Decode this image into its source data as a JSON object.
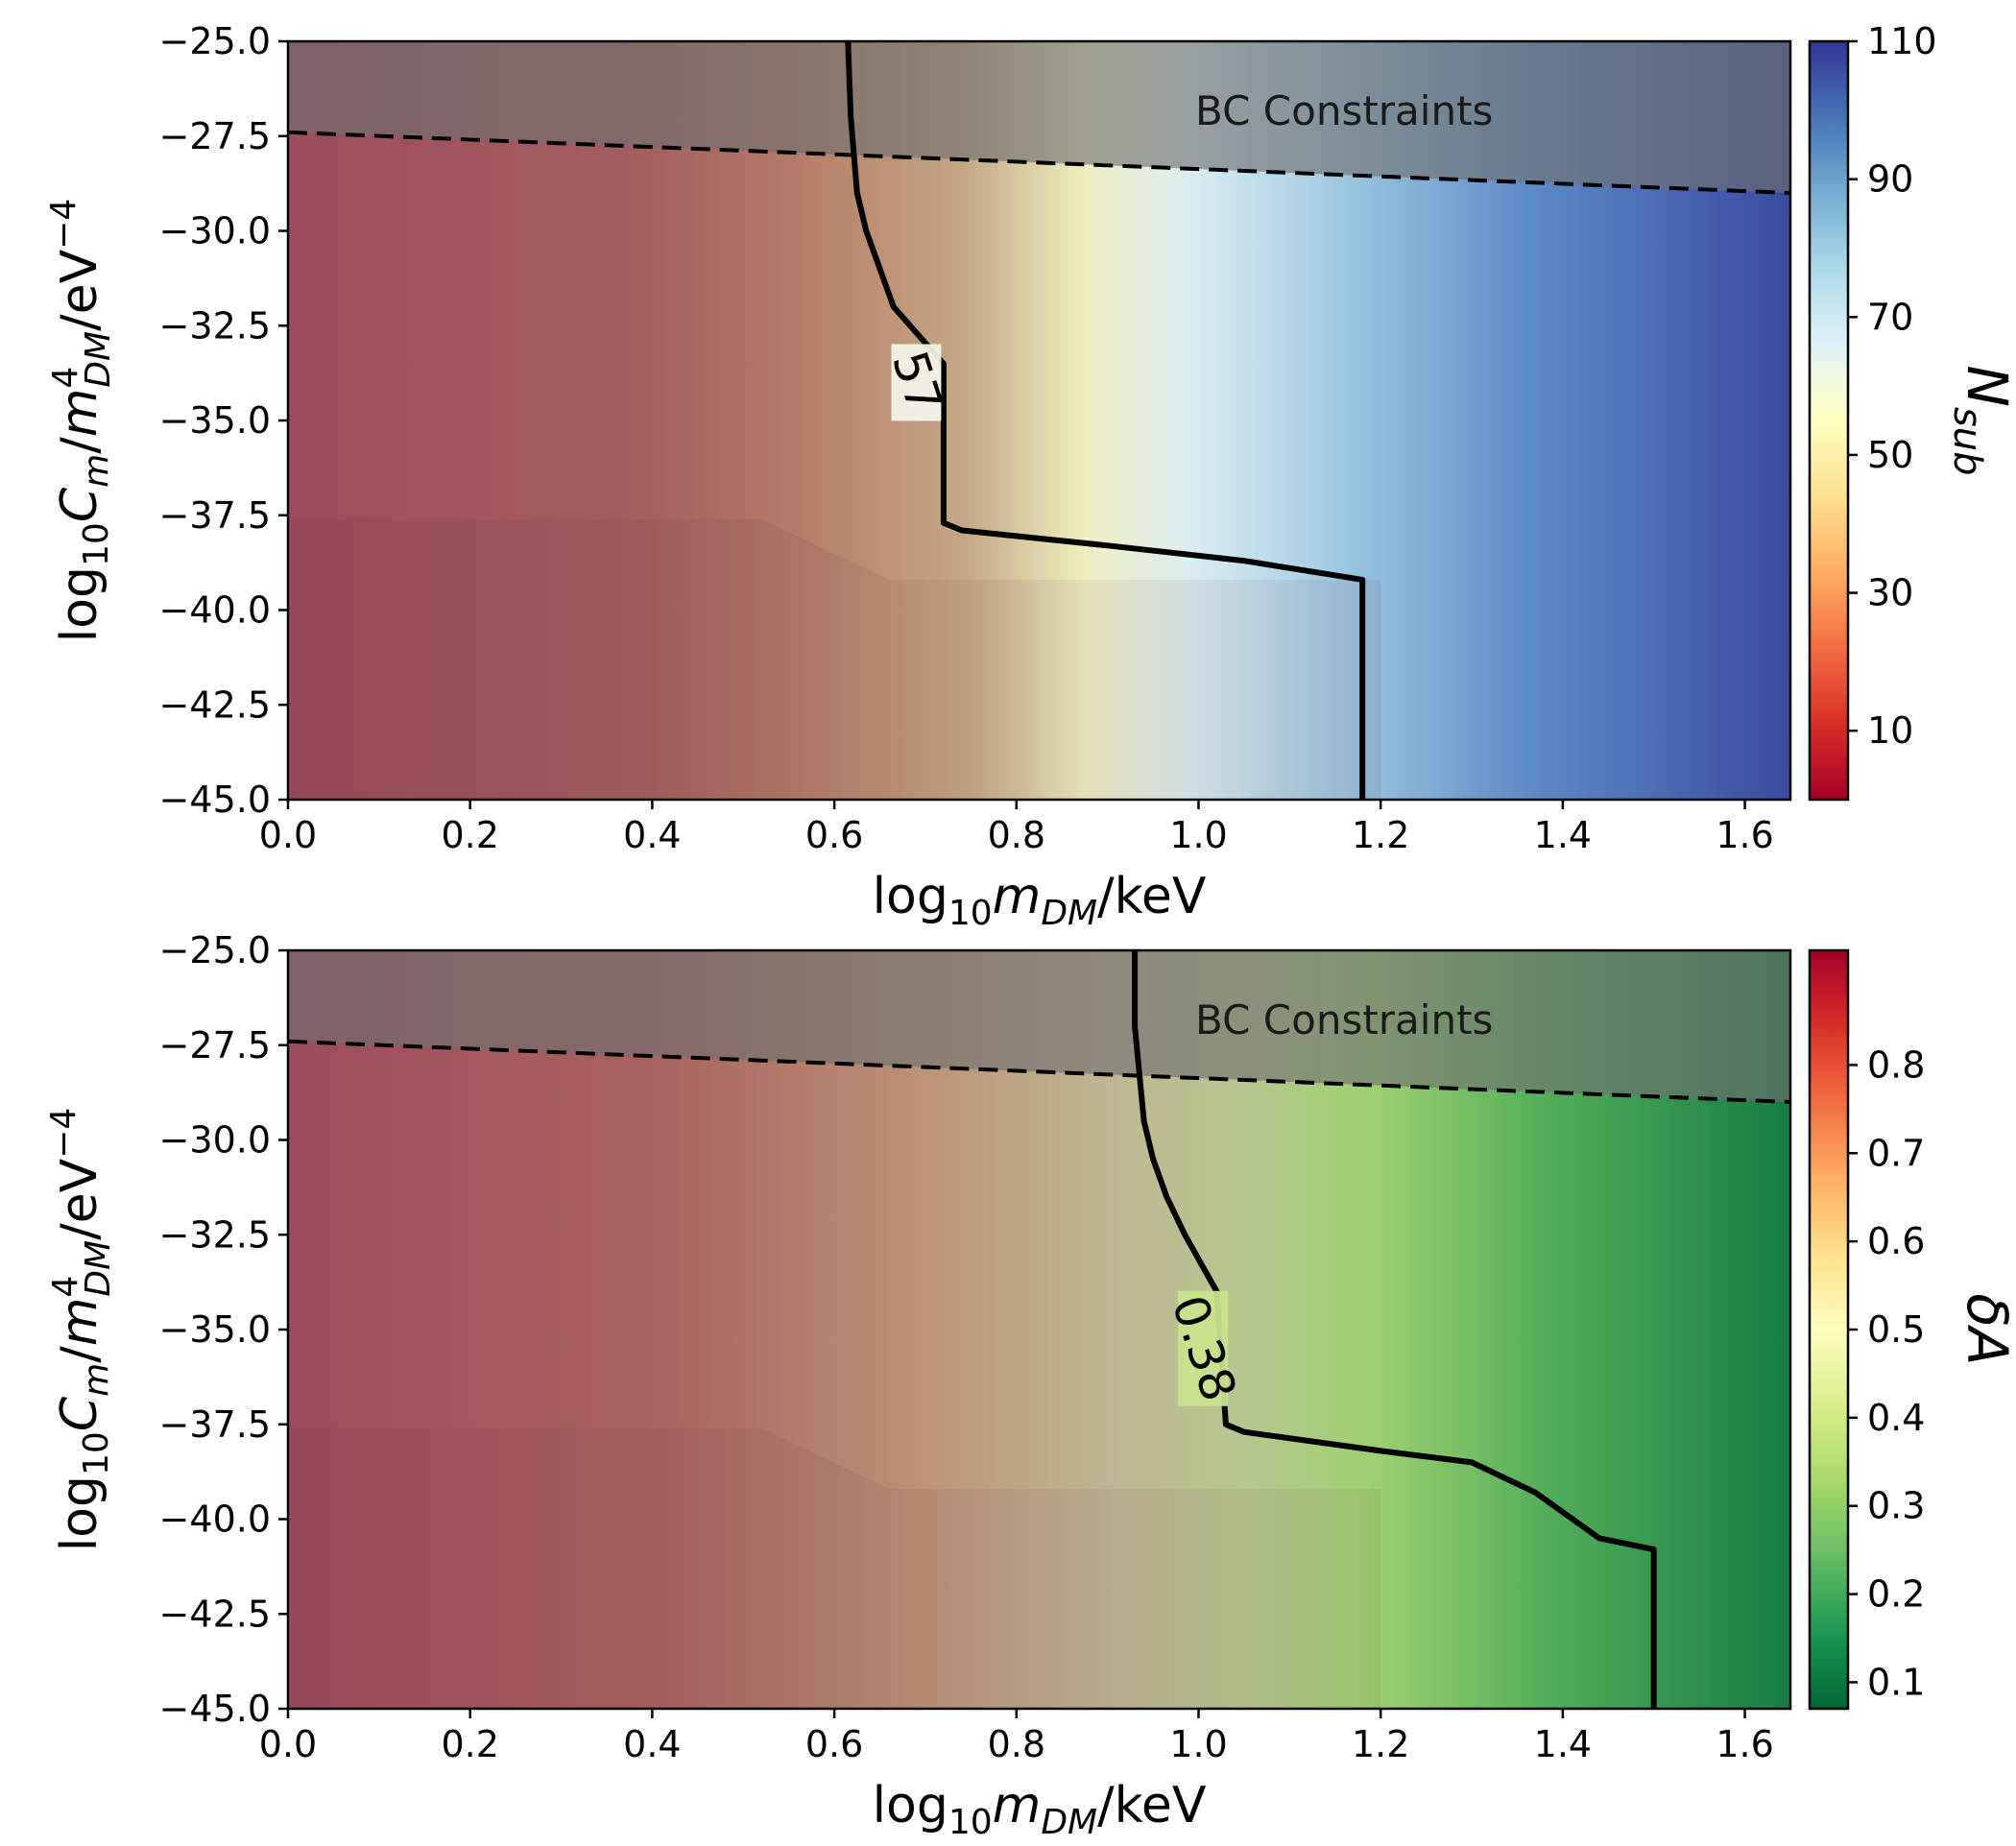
{
  "chart_data": [
    {
      "type": "heatmap",
      "panel": "top",
      "xlabel": "log10mDM/keV",
      "ylabel": "log10Cm/m4DM/eV−4",
      "colorbar_label": "Nsub",
      "colorbar_label_parts": {
        "main": "N",
        "sub": "sub"
      },
      "colormap": "RdYlBu",
      "xlim": [
        0.0,
        1.65
      ],
      "ylim": [
        -45.0,
        -25.0
      ],
      "xticks": [
        "0.0",
        "0.2",
        "0.4",
        "0.6",
        "0.8",
        "1.0",
        "1.2",
        "1.4",
        "1.6"
      ],
      "yticks": [
        "−45.0",
        "−42.5",
        "−40.0",
        "−37.5",
        "−35.0",
        "−32.5",
        "−30.0",
        "−27.5",
        "−25.0"
      ],
      "colorbar_range": [
        0,
        110
      ],
      "colorbar_ticks": [
        "10",
        "30",
        "50",
        "70",
        "90",
        "110"
      ],
      "contour_level": "57",
      "contour_path": [
        [
          0.615,
          -25.0
        ],
        [
          0.618,
          -27.0
        ],
        [
          0.625,
          -29.0
        ],
        [
          0.635,
          -30.0
        ],
        [
          0.665,
          -32.0
        ],
        [
          0.72,
          -33.5
        ],
        [
          0.72,
          -35.0
        ],
        [
          0.72,
          -37.7
        ],
        [
          0.74,
          -37.9
        ],
        [
          0.9,
          -38.3
        ],
        [
          1.05,
          -38.7
        ],
        [
          1.18,
          -39.2
        ],
        [
          1.18,
          -45.0
        ]
      ],
      "bc_line": [
        [
          0.0,
          -27.4
        ],
        [
          1.65,
          -29.0
        ]
      ],
      "bc_text": "BC Constraints"
    },
    {
      "type": "heatmap",
      "panel": "bottom",
      "xlabel": "log10mDM/keV",
      "ylabel": "log10Cm/m4DM/eV−4",
      "colorbar_label": "δA",
      "colormap": "RdYlGn_r",
      "xlim": [
        0.0,
        1.65
      ],
      "ylim": [
        -45.0,
        -25.0
      ],
      "xticks": [
        "0.0",
        "0.2",
        "0.4",
        "0.6",
        "0.8",
        "1.0",
        "1.2",
        "1.4",
        "1.6"
      ],
      "yticks": [
        "−45.0",
        "−42.5",
        "−40.0",
        "−37.5",
        "−35.0",
        "−32.5",
        "−30.0",
        "−27.5",
        "−25.0"
      ],
      "colorbar_range": [
        0.07,
        0.93
      ],
      "colorbar_ticks": [
        "0.1",
        "0.2",
        "0.3",
        "0.4",
        "0.5",
        "0.6",
        "0.7",
        "0.8"
      ],
      "contour_level": "0.38",
      "contour_path": [
        [
          0.93,
          -25.0
        ],
        [
          0.93,
          -27.0
        ],
        [
          0.94,
          -29.5
        ],
        [
          0.95,
          -30.5
        ],
        [
          0.965,
          -31.5
        ],
        [
          0.985,
          -32.5
        ],
        [
          1.02,
          -34.0
        ],
        [
          1.03,
          -37.5
        ],
        [
          1.05,
          -37.7
        ],
        [
          1.2,
          -38.2
        ],
        [
          1.3,
          -38.5
        ],
        [
          1.37,
          -39.3
        ],
        [
          1.44,
          -40.5
        ],
        [
          1.5,
          -40.8
        ],
        [
          1.5,
          -45.0
        ]
      ],
      "bc_line": [
        [
          0.0,
          -27.4
        ],
        [
          1.65,
          -29.0
        ]
      ],
      "bc_text": "BC Constraints"
    }
  ],
  "colors": {
    "bc_region": "#6f6f6f",
    "contour": "#000000",
    "dashed_line": "#000000"
  }
}
